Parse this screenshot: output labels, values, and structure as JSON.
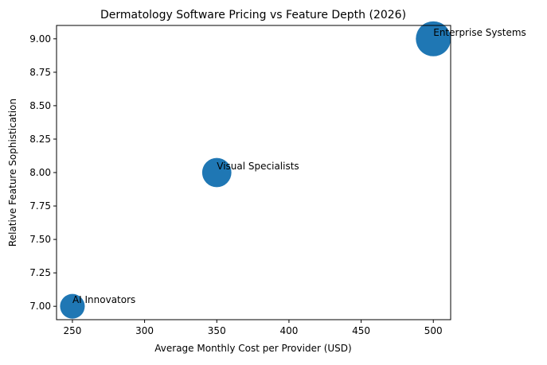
{
  "chart_data": {
    "type": "scatter",
    "title": "Dermatology Software Pricing vs Feature Depth (2026)",
    "xlabel": "Average Monthly Cost per Provider (USD)",
    "ylabel": "Relative Feature Sophistication",
    "xlim": [
      239,
      512
    ],
    "ylim": [
      6.9,
      9.1
    ],
    "xticks": [
      "250",
      "300",
      "350",
      "400",
      "450",
      "500"
    ],
    "xtick_values": [
      250,
      300,
      350,
      400,
      450,
      500
    ],
    "yticks": [
      "7.00",
      "7.25",
      "7.50",
      "7.75",
      "8.00",
      "8.25",
      "8.50",
      "8.75",
      "9.00"
    ],
    "ytick_values": [
      7.0,
      7.25,
      7.5,
      7.75,
      8.0,
      8.25,
      8.5,
      8.75,
      9.0
    ],
    "grid": false,
    "color": "#1f77b4",
    "points": [
      {
        "label": "AI Innovators",
        "x": 250,
        "y": 7.0,
        "size": 500
      },
      {
        "label": "Visual Specialists",
        "x": 350,
        "y": 8.0,
        "size": 700
      },
      {
        "label": "Enterprise Systems",
        "x": 500,
        "y": 9.0,
        "size": 1000
      }
    ]
  }
}
